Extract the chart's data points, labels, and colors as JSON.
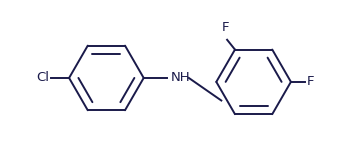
{
  "background_color": "#ffffff",
  "line_color": "#1a1a4a",
  "label_color": "#1a1a4a",
  "font_size": 9.5,
  "line_width": 1.4,
  "fig_width": 3.6,
  "fig_height": 1.5,
  "dpi": 100,
  "cl_label": "Cl",
  "nh_label": "NH",
  "f1_label": "F",
  "f2_label": "F"
}
